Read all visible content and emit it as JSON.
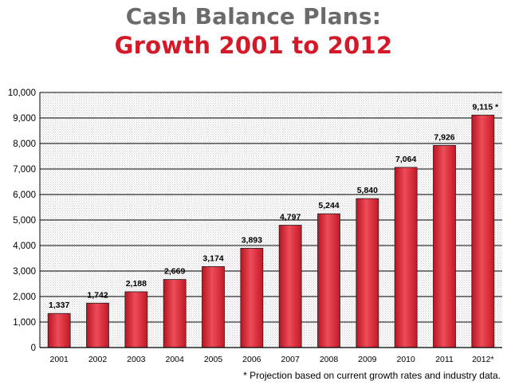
{
  "chart_data": {
    "type": "bar",
    "title": "Cash Balance Plans:",
    "subtitle": "Growth 2001 to 2012",
    "categories": [
      "2001",
      "2002",
      "2003",
      "2004",
      "2005",
      "2006",
      "2007",
      "2008",
      "2009",
      "2010",
      "2011",
      "2012*"
    ],
    "values": [
      1337,
      1742,
      2188,
      2669,
      3174,
      3893,
      4797,
      5244,
      5840,
      7064,
      7926,
      9115
    ],
    "data_labels": [
      "1,337",
      "1,742",
      "2,188",
      "2,669",
      "3,174",
      "3,893",
      "4,797",
      "5,244",
      "5,840",
      "7,064",
      "7,926",
      "9,115 *"
    ],
    "ylim": [
      0,
      10000
    ],
    "yticks": [
      0,
      1000,
      2000,
      3000,
      4000,
      5000,
      6000,
      7000,
      8000,
      9000,
      10000
    ],
    "ytick_labels": [
      "0",
      "1,000",
      "2,000",
      "3,000",
      "4,000",
      "5,000",
      "6,000",
      "7,000",
      "8,000",
      "9,000",
      "10,000"
    ],
    "grid": true,
    "xlabel": "",
    "ylabel": "",
    "footnote": "* Projection based on current growth rates and industry data.",
    "colors": {
      "bar": "#d42030",
      "bar_highlight": "#ee4c58",
      "title": "#6b6b6b",
      "subtitle": "#d41a28",
      "plot_background": "#f2f2f2"
    }
  }
}
